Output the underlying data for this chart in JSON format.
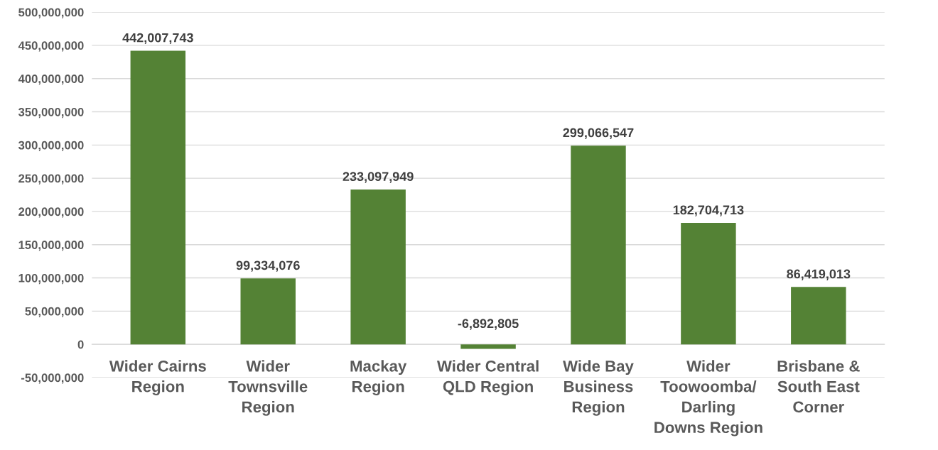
{
  "chart_data": {
    "type": "bar",
    "categories": [
      "Wider Cairns\nRegion",
      "Wider\nTownsville\nRegion",
      "Mackay\nRegion",
      "Wider Central\nQLD Region",
      "Wide Bay\nBusiness\nRegion",
      "Wider\nToowoomba/\nDarling\nDowns Region",
      "Brisbane &\nSouth East\nCorner"
    ],
    "values": [
      442007743,
      99334076,
      233097949,
      -6892805,
      299066547,
      182704713,
      86419013
    ],
    "value_labels": [
      "442,007,743",
      "99,334,076",
      "233,097,949",
      "-6,892,805",
      "299,066,547",
      "182,704,713",
      "86,419,013"
    ],
    "color": "#548235",
    "ylim": [
      -50000000,
      500000000
    ],
    "yticks": [
      {
        "value": -50000000,
        "label": "-50,000,000"
      },
      {
        "value": 0,
        "label": "0"
      },
      {
        "value": 50000000,
        "label": "50,000,000"
      },
      {
        "value": 100000000,
        "label": "100,000,000"
      },
      {
        "value": 150000000,
        "label": "150,000,000"
      },
      {
        "value": 200000000,
        "label": "200,000,000"
      },
      {
        "value": 250000000,
        "label": "250,000,000"
      },
      {
        "value": 300000000,
        "label": "300,000,000"
      },
      {
        "value": 350000000,
        "label": "350,000,000"
      },
      {
        "value": 400000000,
        "label": "400,000,000"
      },
      {
        "value": 450000000,
        "label": "450,000,000"
      },
      {
        "value": 500000000,
        "label": "500,000,000"
      }
    ],
    "grid": "y"
  }
}
